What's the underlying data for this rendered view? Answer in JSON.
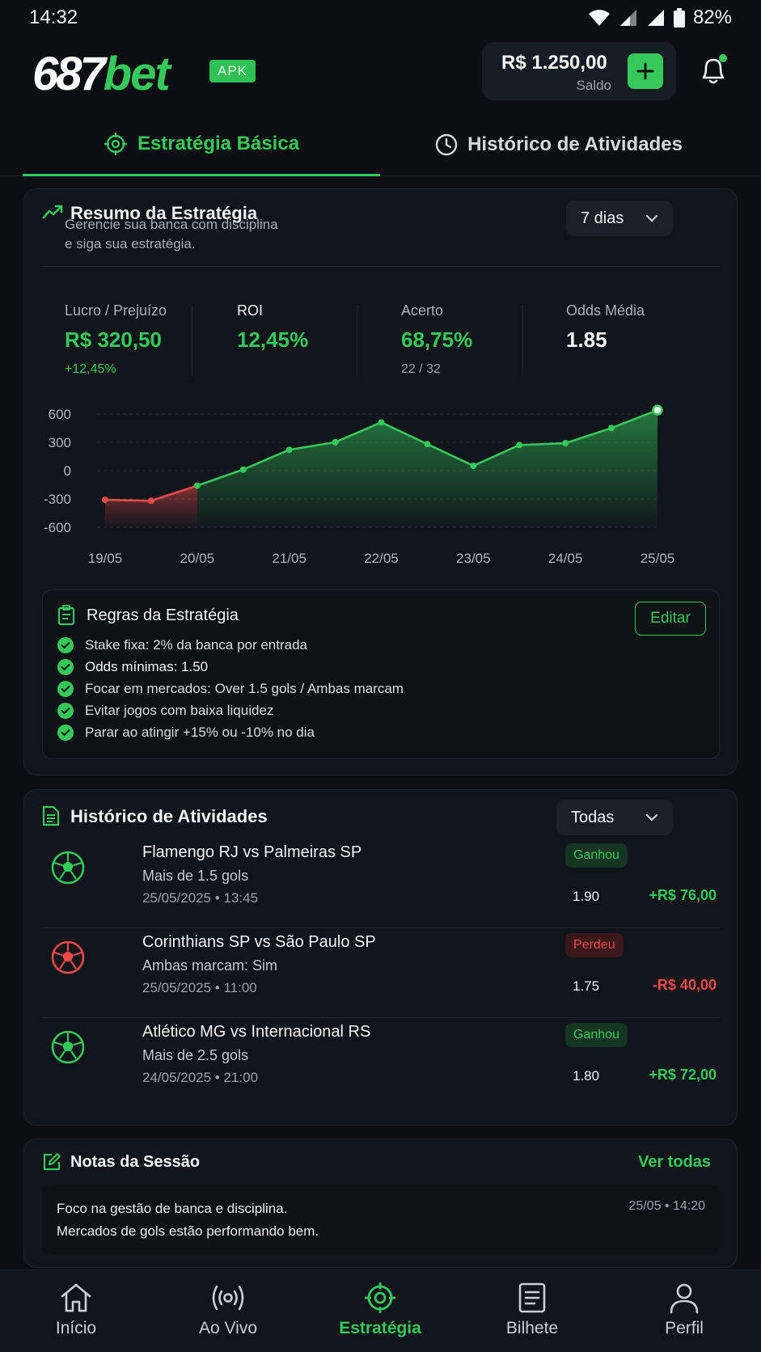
{
  "status": {
    "time": "14:32",
    "battery": "82%"
  },
  "header": {
    "logo_num": "687",
    "logo_bet": "bet",
    "apk_badge": "APK",
    "balance": "R$ 1.250,00",
    "balance_label": "Saldo"
  },
  "tabs": [
    {
      "label": "Estratégia Básica",
      "active": true
    },
    {
      "label": "Histórico de Atividades",
      "active": false
    }
  ],
  "summary": {
    "title": "Resumo da Estratégia",
    "subtitle_1": "Gerencie sua banca com disciplina",
    "subtitle_2": "e siga sua estratégia.",
    "period": "7 dias",
    "stats": [
      {
        "label": "Lucro / Prejuízo",
        "value": "R$ 320,50",
        "sub": "+12,45%"
      },
      {
        "label": "ROI",
        "value": "12,45%",
        "sub": ""
      },
      {
        "label": "Acerto",
        "value": "68,75%",
        "sub": "22 / 32"
      },
      {
        "label": "Odds Média",
        "value": "1.85",
        "sub": ""
      }
    ]
  },
  "chart_data": {
    "type": "area",
    "x": [
      "19/05",
      "19/05½",
      "20/05",
      "20/05½",
      "21/05",
      "21/05½",
      "22/05",
      "22/05½",
      "23/05",
      "23/05½",
      "24/05",
      "24/05½",
      "25/05"
    ],
    "values": [
      -310,
      -320,
      -160,
      10,
      220,
      300,
      510,
      280,
      50,
      270,
      290,
      450,
      640
    ],
    "tick_labels": [
      "19/05",
      "20/05",
      "21/05",
      "22/05",
      "23/05",
      "24/05",
      "25/05"
    ],
    "y_ticks": [
      600,
      300,
      0,
      -300,
      -600
    ],
    "ylim": [
      -600,
      650
    ],
    "colors": {
      "positive": "#35c85a",
      "negative": "#ef4a4a"
    },
    "grid": true
  },
  "rules": {
    "title": "Regras da Estratégia",
    "edit_label": "Editar",
    "items": [
      "Stake fixa: 2% da banca por entrada",
      "Odds mínimas: 1.50",
      "Focar em mercados: Over 1.5 gols / Ambas marcam",
      "Evitar jogos com baixa liquidez",
      "Parar ao atingir +15% ou -10% no dia"
    ]
  },
  "history": {
    "title": "Histórico de Atividades",
    "filter": "Todas",
    "rows": [
      {
        "match": "Flamengo RJ vs Palmeiras SP",
        "market": "Mais de 1.5 gols",
        "datetime": "25/05/2025 • 13:45",
        "result": "Ganhou",
        "odd": "1.90",
        "pl": "+R$ 76,00",
        "win": true
      },
      {
        "match": "Corinthians SP vs São Paulo SP",
        "market": "Ambas marcam: Sim",
        "datetime": "25/05/2025 • 11:00",
        "result": "Perdeu",
        "odd": "1.75",
        "pl": "-R$ 40,00",
        "win": false
      },
      {
        "match": "Atlético MG vs Internacional RS",
        "market": "Mais de 2.5 gols",
        "datetime": "24/05/2025 • 21:00",
        "result": "Ganhou",
        "odd": "1.80",
        "pl": "+R$ 72,00",
        "win": true
      }
    ]
  },
  "notes": {
    "title": "Notas da Sessão",
    "see_all": "Ver todas",
    "line_1": "Foco na gestão de banca e disciplina.",
    "line_2": "Mercados de gols estão performando bem.",
    "timestamp": "25/05 • 14:20"
  },
  "nav": [
    {
      "label": "Início",
      "icon": "home-icon"
    },
    {
      "label": "Ao Vivo",
      "icon": "live-icon"
    },
    {
      "label": "Estratégia",
      "icon": "target-icon",
      "active": true
    },
    {
      "label": "Bilhete",
      "icon": "ticket-icon"
    },
    {
      "label": "Perfil",
      "icon": "profile-icon"
    }
  ]
}
